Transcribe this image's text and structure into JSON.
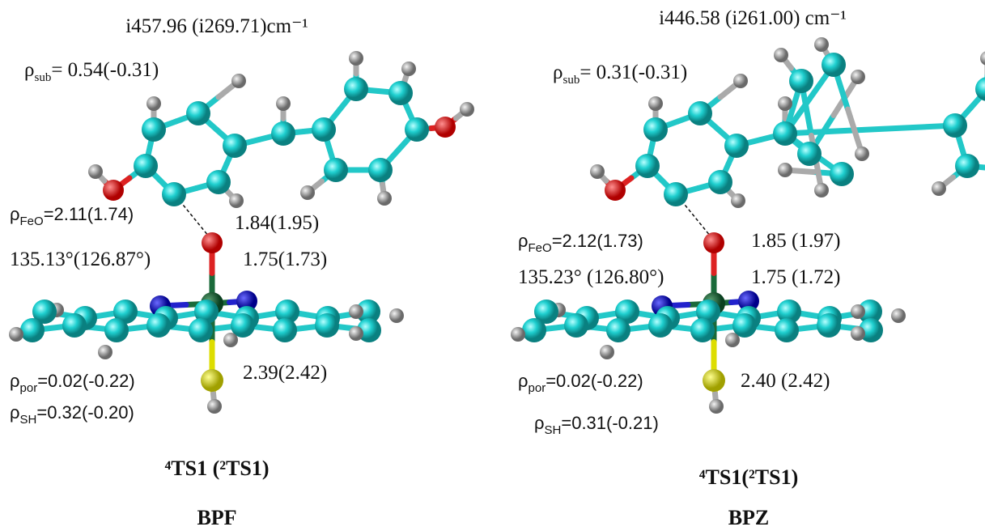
{
  "panels": [
    {
      "frequency": "i457.96 (i269.71)cm⁻¹",
      "rho_sub": {
        "symbol": "ρ",
        "subscript": "sub",
        "text": "= 0.54(-0.31)"
      },
      "rho_feo": {
        "symbol": "ρ",
        "subscript": "FeO",
        "text": "=2.11(1.74)"
      },
      "distance_co": "1.84(1.95)",
      "angle": "135.13°(126.87°)",
      "distance_feo": "1.75(1.73)",
      "distance_fes": "2.39(2.42)",
      "rho_por": {
        "symbol": "ρ",
        "subscript": "por",
        "text": "=0.02(-0.22)"
      },
      "rho_sh": {
        "symbol": "ρ",
        "subscript": "SH",
        "text": "=0.32(-0.20)"
      },
      "state": "⁴TS1 (²TS1)",
      "name": "BPF"
    },
    {
      "frequency": "i446.58 (i261.00) cm⁻¹",
      "rho_sub": {
        "symbol": "ρ",
        "subscript": "sub",
        "text": "= 0.31(-0.31)"
      },
      "rho_feo": {
        "symbol": "ρ",
        "subscript": "FeO",
        "text": "=2.12(1.73)"
      },
      "distance_co": "1.85 (1.97)",
      "angle": "135.23° (126.80°)",
      "distance_feo": "1.75 (1.72)",
      "distance_fes": "2.40 (2.42)",
      "rho_por": {
        "symbol": "ρ",
        "subscript": "por",
        "text": "=0.02(-0.22)"
      },
      "rho_sh": {
        "symbol": "ρ",
        "subscript": "SH",
        "text": "=0.31(-0.21)"
      },
      "state": "⁴TS1(²TS1)",
      "name": "BPZ"
    }
  ]
}
